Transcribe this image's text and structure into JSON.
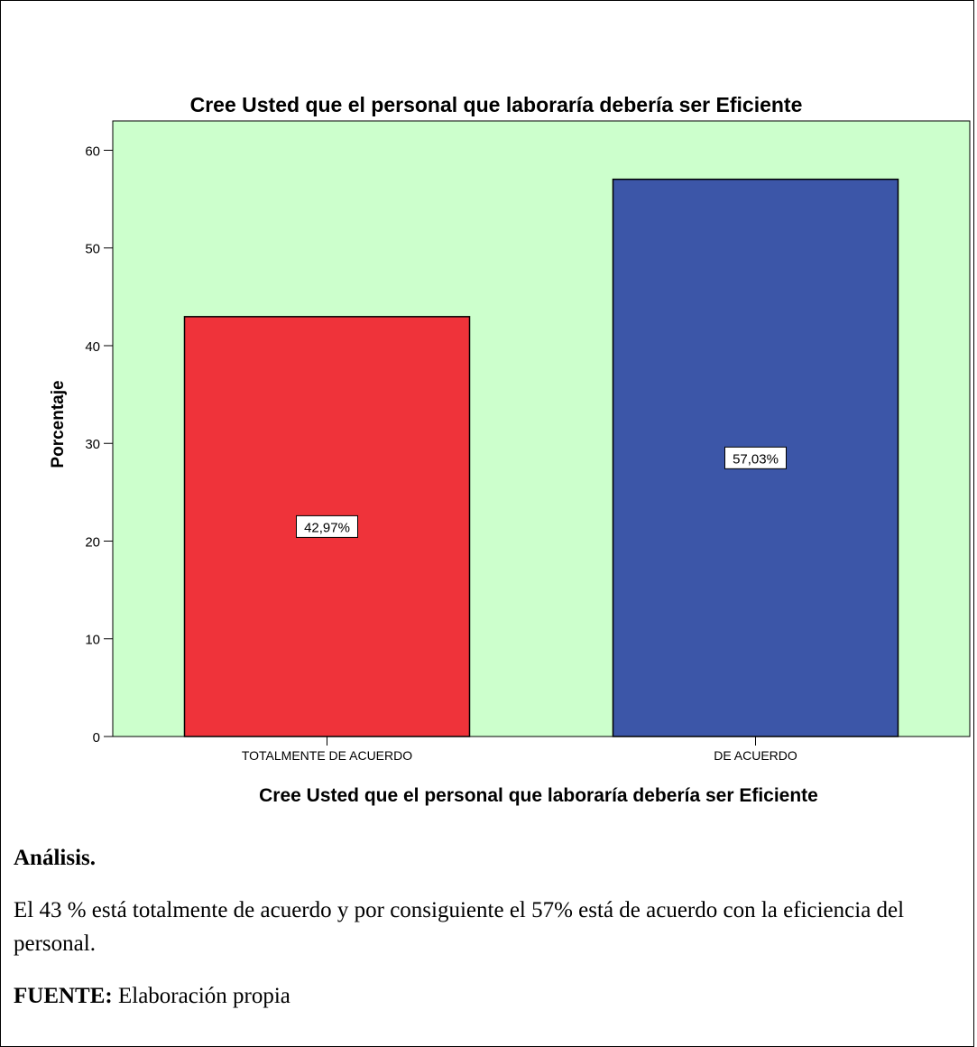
{
  "chart_data": {
    "type": "bar",
    "title": "Cree Usted que  el personal que laboraría debería ser Eficiente",
    "xlabel": "Cree Usted que  el personal que laboraría debería ser Eficiente",
    "ylabel": "Porcentaje",
    "categories": [
      "TOTALMENTE DE ACUERDO",
      "DE ACUERDO"
    ],
    "values": [
      42.97,
      57.03
    ],
    "value_labels": [
      "42,97%",
      "57,03%"
    ],
    "bar_colors": [
      "#ef333a",
      "#3c56a8"
    ],
    "plot_background": "#ccffcc",
    "ylim": [
      0,
      63
    ],
    "yticks": [
      0,
      10,
      20,
      30,
      40,
      50,
      60
    ],
    "grid": false
  },
  "analysis": {
    "heading": "Análisis.",
    "body": "El 43 % está totalmente de acuerdo y por consiguiente el 57% está de acuerdo con la eficiencia del personal."
  },
  "source": {
    "label": "FUENTE:",
    "text": " Elaboración propia"
  }
}
